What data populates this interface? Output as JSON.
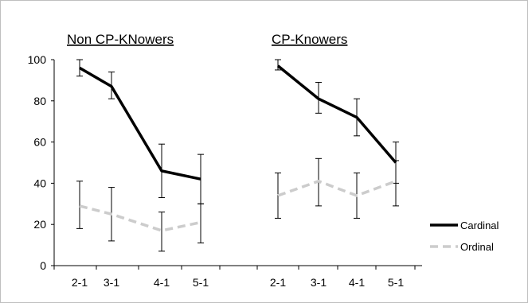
{
  "chart_data": {
    "type": "line",
    "panel_titles": [
      "Non CP-KNowers",
      "CP-Knowers"
    ],
    "categories": [
      "2-1",
      "3-1",
      "4-1",
      "5-1"
    ],
    "ylim": [
      0,
      100
    ],
    "yticks": [
      "0",
      "20",
      "40",
      "60",
      "80",
      "100"
    ],
    "grid": false,
    "legend_position": "bottom-right",
    "legend": [
      "Cardinal",
      "Ordinal"
    ],
    "panels": [
      {
        "series": [
          {
            "values": [
              96,
              87,
              46,
              42
            ],
            "error_low": [
              92,
              81,
              33,
              30
            ],
            "error_high": [
              100,
              94,
              59,
              54
            ],
            "color": "#000000",
            "style": "solid"
          },
          {
            "values": [
              29,
              25,
              17,
              21
            ],
            "error_low": [
              18,
              12,
              7,
              11
            ],
            "error_high": [
              41,
              38,
              26,
              30
            ],
            "color": "#cccccc",
            "style": "dashed"
          }
        ]
      },
      {
        "series": [
          {
            "values": [
              97,
              81,
              72,
              50
            ],
            "error_low": [
              95,
              74,
              63,
              40
            ],
            "error_high": [
              100,
              89,
              81,
              60
            ],
            "color": "#000000",
            "style": "solid"
          },
          {
            "values": [
              34,
              41,
              34,
              41
            ],
            "error_low": [
              23,
              29,
              23,
              29
            ],
            "error_high": [
              45,
              52,
              45,
              51
            ],
            "color": "#cccccc",
            "style": "dashed"
          }
        ]
      }
    ]
  }
}
